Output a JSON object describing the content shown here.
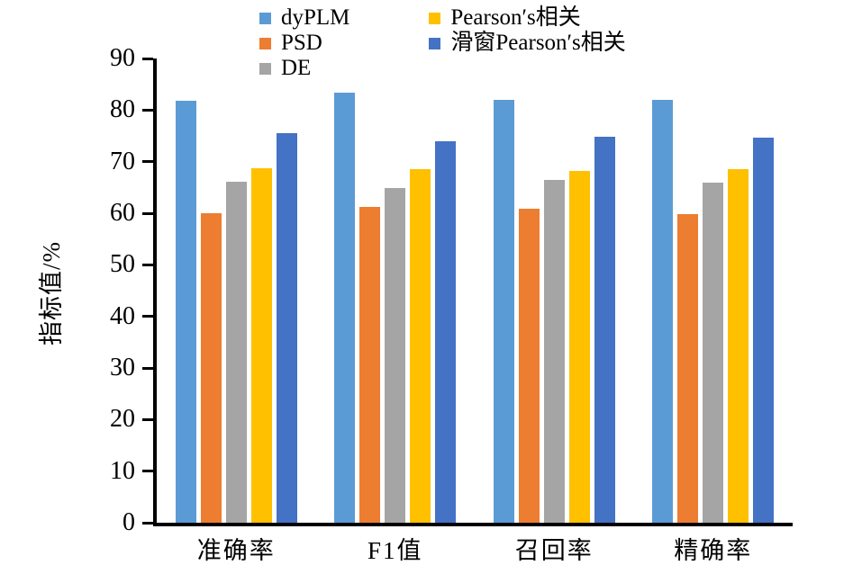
{
  "chart_data": {
    "type": "bar",
    "title": "",
    "xlabel": "",
    "ylabel": "指标值/%",
    "ylim": [
      0,
      90
    ],
    "yticks": [
      0,
      10,
      20,
      30,
      40,
      50,
      60,
      70,
      80,
      90
    ],
    "grid": false,
    "legend_position": "top",
    "categories": [
      "准确率",
      "F1值",
      "召回率",
      "精确率"
    ],
    "series": [
      {
        "id": "dyplm",
        "name": "dyPLM",
        "color": "#5B9BD5",
        "values": [
          81.8,
          83.4,
          82.0,
          82.0
        ]
      },
      {
        "id": "psd",
        "name": "PSD",
        "color": "#ED7D31",
        "values": [
          60.0,
          61.2,
          60.9,
          59.9
        ]
      },
      {
        "id": "de",
        "name": "DE",
        "color": "#A5A5A5",
        "values": [
          66.1,
          64.9,
          66.4,
          65.9
        ]
      },
      {
        "id": "pearson",
        "name": "Pearson′s相关",
        "color": "#FFC000",
        "values": [
          68.8,
          68.6,
          68.2,
          68.5
        ]
      },
      {
        "id": "sliding-pearson",
        "name": "滑窗Pearson′s相关",
        "color": "#4472C4",
        "values": [
          75.5,
          74.0,
          74.9,
          74.7
        ]
      }
    ],
    "axis_color": "#000000",
    "background_color": "#ffffff"
  }
}
